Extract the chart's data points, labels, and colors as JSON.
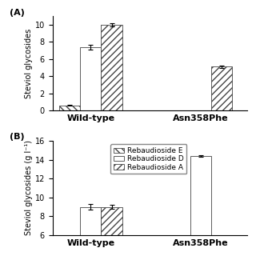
{
  "panel_A": {
    "groups": [
      "Wild-type",
      "Asn358Phe"
    ],
    "series_order": [
      "Rebaudioside E",
      "Rebaudioside D",
      "Rebaudioside A"
    ],
    "series": {
      "Rebaudioside D": {
        "values": [
          7.4,
          0.0
        ],
        "errors": [
          0.3,
          0.0
        ]
      },
      "Rebaudioside A": {
        "values": [
          10.0,
          5.1
        ],
        "errors": [
          0.2,
          0.15
        ]
      },
      "Rebaudioside E": {
        "values": [
          0.6,
          0.0
        ],
        "errors": [
          0.05,
          0.0
        ]
      }
    },
    "ylim": [
      0,
      11
    ],
    "yticks": [
      0,
      2,
      4,
      6,
      8,
      10
    ],
    "ylabel": "Steviol glycosides"
  },
  "panel_B": {
    "groups": [
      "Wild-type",
      "Asn358Phe"
    ],
    "series_order": [
      "Rebaudioside E",
      "Rebaudioside D",
      "Rebaudioside A"
    ],
    "series": {
      "Rebaudioside D": {
        "values": [
          9.0,
          14.4
        ],
        "errors": [
          0.3,
          0.1
        ]
      },
      "Rebaudioside A": {
        "values": [
          9.0,
          0.0
        ],
        "errors": [
          0.2,
          0.0
        ]
      },
      "Rebaudioside E": {
        "values": [
          0.0,
          0.0
        ],
        "errors": [
          0.0,
          0.0
        ]
      }
    },
    "ylim": [
      6,
      16
    ],
    "yticks": [
      6,
      8,
      10,
      12,
      14,
      16
    ],
    "ylabel": "Steviol glycosides (g l⁻¹)"
  },
  "hatches": {
    "Rebaudioside E": "\\\\\\\\",
    "Rebaudioside D": "",
    "Rebaudioside A": "////"
  },
  "bar_width": 0.25,
  "x_positions": [
    0.45,
    1.75
  ],
  "xlim": [
    0.0,
    2.3
  ],
  "background_color": "#ffffff",
  "bar_edgecolor": "#444444",
  "fontsize_label": 7,
  "fontsize_tick": 7,
  "fontsize_legend": 6.5,
  "fontsize_panel": 8
}
